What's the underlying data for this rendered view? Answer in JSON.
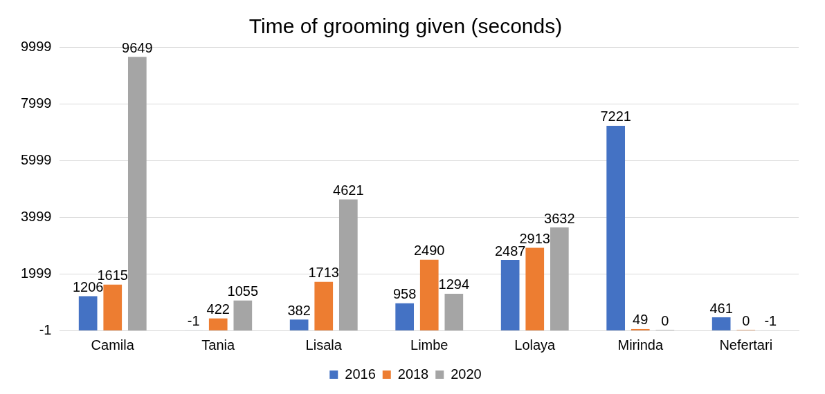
{
  "chart_data": {
    "type": "bar",
    "title": "Time of grooming given (seconds)",
    "categories": [
      "Camila",
      "Tania",
      "Lisala",
      "Limbe",
      "Lolaya",
      "Mirinda",
      "Nefertari"
    ],
    "series": [
      {
        "name": "2016",
        "color": "#4472c4",
        "values": [
          1206,
          -1,
          382,
          958,
          2487,
          7221,
          461
        ]
      },
      {
        "name": "2018",
        "color": "#ed7d31",
        "values": [
          1615,
          422,
          1713,
          2490,
          2913,
          49,
          0
        ]
      },
      {
        "name": "2020",
        "color": "#a5a5a5",
        "values": [
          9649,
          1055,
          4621,
          1294,
          3632,
          0,
          -1
        ]
      }
    ],
    "ylim": [
      -1,
      9999
    ],
    "yticks": [
      -1,
      1999,
      3999,
      5999,
      7999,
      9999
    ],
    "grid": "y",
    "legend": "bottom",
    "data_labels": true
  }
}
